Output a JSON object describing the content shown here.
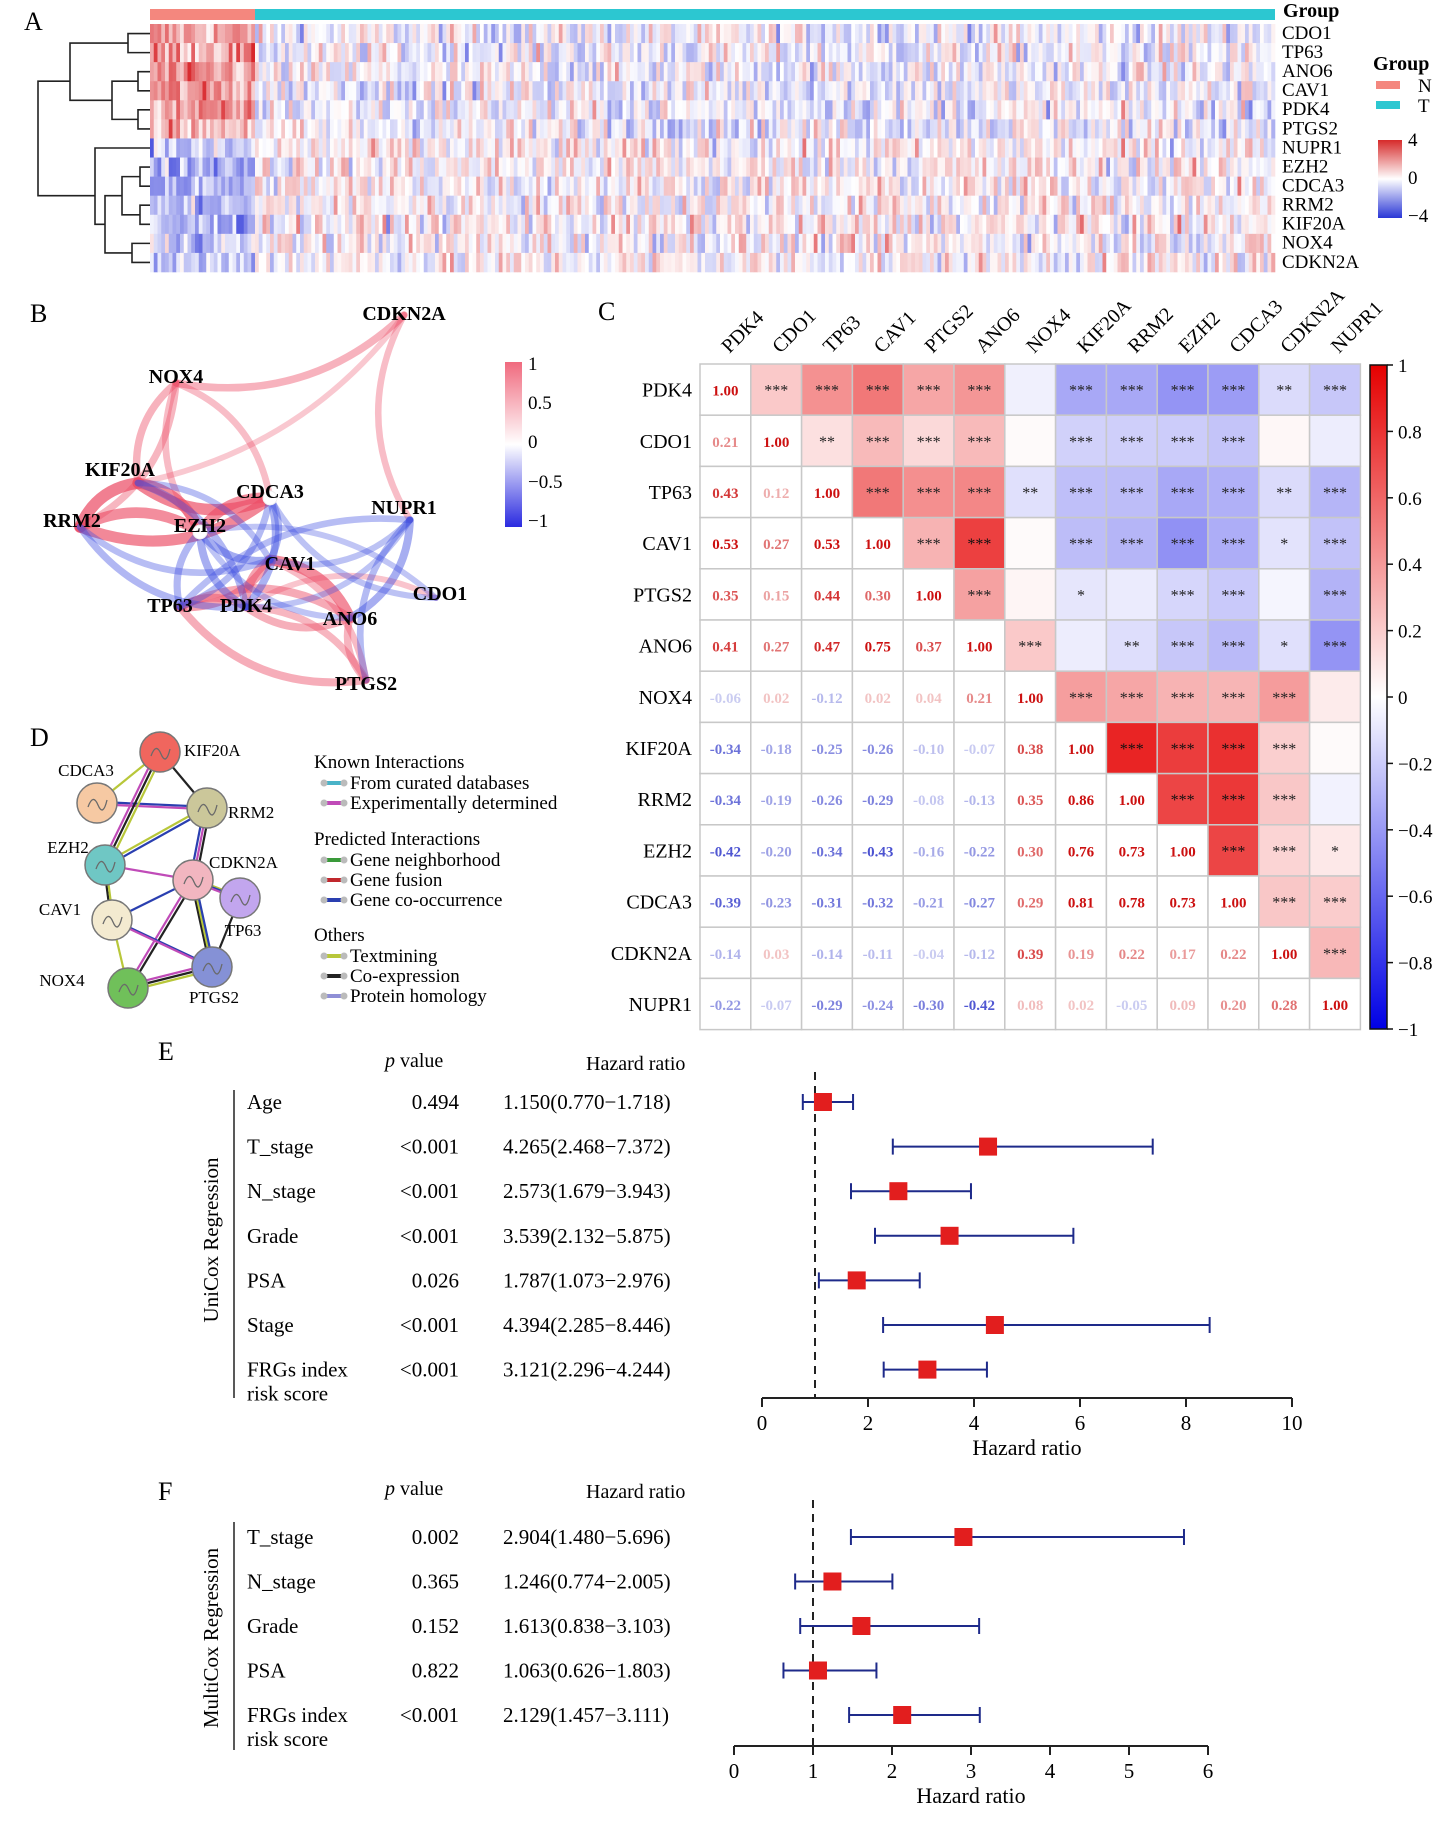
{
  "panels": {
    "A": "A",
    "B": "B",
    "C": "C",
    "D": "D",
    "E": "E",
    "F": "F"
  },
  "chart_data": [
    {
      "panel": "A",
      "type": "heatmap",
      "genes": [
        "CDO1",
        "TP63",
        "ANO6",
        "CAV1",
        "PDK4",
        "PTGS2",
        "NUPR1",
        "EZH2",
        "CDCA3",
        "RRM2",
        "KIF20A",
        "NOX4",
        "CDKN2A"
      ],
      "group_title": "Group",
      "group_bar_title": "Group",
      "groups": [
        {
          "name": "N",
          "color": "#f4877e"
        },
        {
          "name": "T",
          "color": "#2cc7d1"
        }
      ],
      "n_normal_fraction": 0.092,
      "row_bias_in_normal": [
        1.6,
        1.8,
        1.7,
        1.8,
        1.7,
        1.4,
        -1.1,
        -1.4,
        -1.5,
        -1.4,
        -1.5,
        -0.9,
        -1.0
      ],
      "scale_labels": [
        "4",
        "0",
        "−4"
      ],
      "scale_range": [
        -4,
        4
      ]
    },
    {
      "panel": "B",
      "type": "network",
      "nodes": [
        "CDKN2A",
        "NOX4",
        "KIF20A",
        "CDCA3",
        "NUPR1",
        "RRM2",
        "EZH2",
        "CAV1",
        "CDO1",
        "TP63",
        "PDK4",
        "ANO6",
        "PTGS2"
      ],
      "edges": [
        [
          "CDKN2A",
          "NOX4",
          0.39
        ],
        [
          "CDKN2A",
          "NUPR1",
          0.28
        ],
        [
          "CDKN2A",
          "KIF20A",
          0.19
        ],
        [
          "NOX4",
          "KIF20A",
          0.38
        ],
        [
          "NOX4",
          "RRM2",
          0.35
        ],
        [
          "NOX4",
          "EZH2",
          0.3
        ],
        [
          "NOX4",
          "CDCA3",
          0.29
        ],
        [
          "KIF20A",
          "RRM2",
          0.86
        ],
        [
          "KIF20A",
          "EZH2",
          0.76
        ],
        [
          "KIF20A",
          "CDCA3",
          0.81
        ],
        [
          "RRM2",
          "EZH2",
          0.73
        ],
        [
          "RRM2",
          "CDCA3",
          0.78
        ],
        [
          "EZH2",
          "CDCA3",
          0.73
        ],
        [
          "PDK4",
          "TP63",
          0.43
        ],
        [
          "PDK4",
          "CAV1",
          0.53
        ],
        [
          "PDK4",
          "ANO6",
          0.41
        ],
        [
          "PDK4",
          "PTGS2",
          0.35
        ],
        [
          "TP63",
          "CAV1",
          0.53
        ],
        [
          "TP63",
          "ANO6",
          0.47
        ],
        [
          "TP63",
          "PTGS2",
          0.44
        ],
        [
          "CAV1",
          "ANO6",
          0.75
        ],
        [
          "ANO6",
          "PTGS2",
          0.37
        ],
        [
          "CAV1",
          "PTGS2",
          0.3
        ],
        [
          "CDO1",
          "PDK4",
          0.21
        ],
        [
          "PDK4",
          "EZH2",
          -0.42
        ],
        [
          "PDK4",
          "KIF20A",
          -0.34
        ],
        [
          "PDK4",
          "RRM2",
          -0.34
        ],
        [
          "PDK4",
          "CDCA3",
          -0.39
        ],
        [
          "CAV1",
          "EZH2",
          -0.43
        ],
        [
          "CAV1",
          "CDCA3",
          -0.32
        ],
        [
          "CAV1",
          "RRM2",
          -0.29
        ],
        [
          "CAV1",
          "KIF20A",
          -0.26
        ],
        [
          "TP63",
          "EZH2",
          -0.34
        ],
        [
          "TP63",
          "CDCA3",
          -0.31
        ],
        [
          "TP63",
          "NUPR1",
          -0.29
        ],
        [
          "ANO6",
          "NUPR1",
          -0.42
        ],
        [
          "PTGS2",
          "NUPR1",
          -0.3
        ],
        [
          "CAV1",
          "NUPR1",
          -0.24
        ],
        [
          "CDO1",
          "CDCA3",
          -0.23
        ],
        [
          "CDO1",
          "EZH2",
          -0.2
        ],
        [
          "ANO6",
          "EZH2",
          -0.22
        ],
        [
          "PDK4",
          "NUPR1",
          -0.22
        ]
      ],
      "scale_labels": [
        "1",
        "0.5",
        "0",
        "−0.5",
        "−1"
      ]
    },
    {
      "panel": "C",
      "type": "heatmap",
      "genes": [
        "PDK4",
        "CDO1",
        "TP63",
        "CAV1",
        "PTGS2",
        "ANO6",
        "NOX4",
        "KIF20A",
        "RRM2",
        "EZH2",
        "CDCA3",
        "CDKN2A",
        "NUPR1"
      ],
      "matrix": [
        [
          1.0,
          0.21,
          0.43,
          0.53,
          0.35,
          0.41,
          -0.06,
          -0.34,
          -0.34,
          -0.42,
          -0.39,
          -0.14,
          -0.22
        ],
        [
          0.21,
          1.0,
          0.12,
          0.27,
          0.15,
          0.27,
          0.02,
          -0.18,
          -0.19,
          -0.2,
          -0.23,
          0.03,
          -0.07
        ],
        [
          0.43,
          0.12,
          1.0,
          0.53,
          0.44,
          0.47,
          -0.12,
          -0.25,
          -0.26,
          -0.34,
          -0.31,
          -0.14,
          -0.29
        ],
        [
          0.53,
          0.27,
          0.53,
          1.0,
          0.3,
          0.75,
          0.02,
          -0.26,
          -0.29,
          -0.43,
          -0.32,
          -0.11,
          -0.24
        ],
        [
          0.35,
          0.15,
          0.44,
          0.3,
          1.0,
          0.37,
          0.04,
          -0.1,
          -0.08,
          -0.16,
          -0.21,
          -0.04,
          -0.3
        ],
        [
          0.41,
          0.27,
          0.47,
          0.75,
          0.37,
          1.0,
          0.21,
          -0.07,
          -0.13,
          -0.22,
          -0.27,
          -0.12,
          -0.42
        ],
        [
          -0.06,
          0.02,
          -0.12,
          0.02,
          0.04,
          0.21,
          1.0,
          0.38,
          0.35,
          0.3,
          0.29,
          0.39,
          0.08
        ],
        [
          -0.34,
          -0.18,
          -0.25,
          -0.26,
          -0.1,
          -0.07,
          0.38,
          1.0,
          0.86,
          0.76,
          0.81,
          0.19,
          0.02
        ],
        [
          -0.34,
          -0.19,
          -0.26,
          -0.29,
          -0.08,
          -0.13,
          0.35,
          0.86,
          1.0,
          0.73,
          0.78,
          0.22,
          -0.05
        ],
        [
          -0.42,
          -0.2,
          -0.34,
          -0.43,
          -0.16,
          -0.22,
          0.3,
          0.76,
          0.73,
          1.0,
          0.73,
          0.17,
          0.09
        ],
        [
          -0.39,
          -0.23,
          -0.31,
          -0.32,
          -0.21,
          -0.27,
          0.29,
          0.81,
          0.78,
          0.73,
          1.0,
          0.22,
          0.2
        ],
        [
          -0.14,
          0.03,
          -0.14,
          -0.11,
          -0.04,
          -0.12,
          0.39,
          0.19,
          0.22,
          0.17,
          0.22,
          1.0,
          0.28
        ],
        [
          -0.22,
          -0.07,
          -0.29,
          -0.24,
          -0.3,
          -0.42,
          0.08,
          0.02,
          -0.05,
          0.09,
          0.2,
          0.28,
          1.0
        ]
      ],
      "significance": [
        [
          "",
          "***",
          "***",
          "***",
          "***",
          "***",
          "",
          "***",
          "***",
          "***",
          "***",
          "**",
          "***"
        ],
        [
          "",
          "",
          "**",
          "***",
          "***",
          "***",
          "",
          "***",
          "***",
          "***",
          "***",
          "",
          ""
        ],
        [
          "",
          "",
          "",
          "***",
          "***",
          "***",
          "**",
          "***",
          "***",
          "***",
          "***",
          "**",
          "***"
        ],
        [
          "",
          "",
          "",
          "",
          "***",
          "***",
          "",
          "***",
          "***",
          "***",
          "***",
          "*",
          "***"
        ],
        [
          "",
          "",
          "",
          "",
          "",
          "***",
          "",
          "*",
          "",
          "***",
          "***",
          "",
          "***"
        ],
        [
          "",
          "",
          "",
          "",
          "",
          "",
          "***",
          "",
          "**",
          "***",
          "***",
          "*",
          "***"
        ],
        [
          "",
          "",
          "",
          "",
          "",
          "",
          "",
          "***",
          "***",
          "***",
          "***",
          "***",
          ""
        ],
        [
          "",
          "",
          "",
          "",
          "",
          "",
          "",
          "",
          "***",
          "***",
          "***",
          "***",
          ""
        ],
        [
          "",
          "",
          "",
          "",
          "",
          "",
          "",
          "",
          "",
          "***",
          "***",
          "***",
          ""
        ],
        [
          "",
          "",
          "",
          "",
          "",
          "",
          "",
          "",
          "",
          "",
          "***",
          "***",
          "*"
        ],
        [
          "",
          "",
          "",
          "",
          "",
          "",
          "",
          "",
          "",
          "",
          "",
          "***",
          "***"
        ],
        [
          "",
          "",
          "",
          "",
          "",
          "",
          "",
          "",
          "",
          "",
          "",
          "",
          "***"
        ],
        [
          "",
          "",
          "",
          "",
          "",
          "",
          "",
          "",
          "",
          "",
          "",
          "",
          ""
        ]
      ],
      "scale_labels": [
        "1",
        "0.8",
        "0.6",
        "0.4",
        "0.2",
        "0",
        "−0.2",
        "−0.4",
        "−0.6",
        "−0.8",
        "−1"
      ],
      "scale_range": [
        -1,
        1
      ]
    },
    {
      "panel": "D",
      "type": "network",
      "nodes": [
        {
          "name": "KIF20A",
          "color": "#f0665e"
        },
        {
          "name": "CDCA3",
          "color": "#f6c9a3"
        },
        {
          "name": "RRM2",
          "color": "#cbc79a"
        },
        {
          "name": "EZH2",
          "color": "#6fc7c4"
        },
        {
          "name": "CDKN2A",
          "color": "#f2b6c0"
        },
        {
          "name": "TP63",
          "color": "#c2a6ee"
        },
        {
          "name": "CAV1",
          "color": "#f3ead0"
        },
        {
          "name": "NOX4",
          "color": "#70c05a"
        },
        {
          "name": "PTGS2",
          "color": "#8591d6"
        }
      ],
      "edges": [
        [
          "CDCA3",
          "KIF20A"
        ],
        [
          "CDCA3",
          "RRM2"
        ],
        [
          "KIF20A",
          "EZH2"
        ],
        [
          "KIF20A",
          "RRM2"
        ],
        [
          "RRM2",
          "EZH2"
        ],
        [
          "RRM2",
          "CDKN2A"
        ],
        [
          "EZH2",
          "CDKN2A"
        ],
        [
          "EZH2",
          "CAV1"
        ],
        [
          "CDKN2A",
          "TP63"
        ],
        [
          "CDKN2A",
          "CAV1"
        ],
        [
          "CDKN2A",
          "NOX4"
        ],
        [
          "CDKN2A",
          "PTGS2"
        ],
        [
          "CAV1",
          "NOX4"
        ],
        [
          "CAV1",
          "PTGS2"
        ],
        [
          "NOX4",
          "PTGS2"
        ],
        [
          "TP63",
          "PTGS2"
        ]
      ],
      "legend": {
        "known_title": "Known Interactions",
        "known": [
          {
            "label": "From curated databases",
            "color": "#49b3c8"
          },
          {
            "label": "Experimentally determined",
            "color": "#c04bb8"
          }
        ],
        "predicted_title": "Predicted Interactions",
        "predicted": [
          {
            "label": "Gene neighborhood",
            "color": "#3a9a3a"
          },
          {
            "label": "Gene fusion",
            "color": "#c0282d"
          },
          {
            "label": "Gene co-occurrence",
            "color": "#2a3fb0"
          }
        ],
        "others_title": "Others",
        "others": [
          {
            "label": "Textmining",
            "color": "#b8c73a"
          },
          {
            "label": "Co-expression",
            "color": "#222222"
          },
          {
            "label": "Protein homology",
            "color": "#8f8fd6"
          }
        ]
      }
    },
    {
      "panel": "E",
      "type": "forest",
      "group_label": "UniCox Regression",
      "col_p": "p value",
      "col_hr": "Hazard ratio",
      "rows": [
        {
          "label": "Age",
          "p": "0.494",
          "hr_text": "1.150(0.770−1.718)",
          "hr": 1.15,
          "lo": 0.77,
          "hi": 1.718
        },
        {
          "label": "T_stage",
          "p": "<0.001",
          "hr_text": "4.265(2.468−7.372)",
          "hr": 4.265,
          "lo": 2.468,
          "hi": 7.372
        },
        {
          "label": "N_stage",
          "p": "<0.001",
          "hr_text": "2.573(1.679−3.943)",
          "hr": 2.573,
          "lo": 1.679,
          "hi": 3.943
        },
        {
          "label": "Grade",
          "p": "<0.001",
          "hr_text": "3.539(2.132−5.875)",
          "hr": 3.539,
          "lo": 2.132,
          "hi": 5.875
        },
        {
          "label": "PSA",
          "p": "0.026",
          "hr_text": "1.787(1.073−2.976)",
          "hr": 1.787,
          "lo": 1.073,
          "hi": 2.976
        },
        {
          "label": "Stage",
          "p": "<0.001",
          "hr_text": "4.394(2.285−8.446)",
          "hr": 4.394,
          "lo": 2.285,
          "hi": 8.446
        },
        {
          "label": "FRGs index",
          "label2": "risk score",
          "p": "<0.001",
          "hr_text": "3.121(2.296−4.244)",
          "hr": 3.121,
          "lo": 2.296,
          "hi": 4.244
        }
      ],
      "xlim": [
        0,
        10
      ],
      "ticks": [
        0,
        2,
        4,
        6,
        8,
        10
      ],
      "ref_line": 1,
      "xlabel": "Hazard ratio"
    },
    {
      "panel": "F",
      "type": "forest",
      "group_label": "MultiCox Regression",
      "col_p": "p value",
      "col_hr": "Hazard ratio",
      "rows": [
        {
          "label": "T_stage",
          "p": "0.002",
          "hr_text": "2.904(1.480−5.696)",
          "hr": 2.904,
          "lo": 1.48,
          "hi": 5.696
        },
        {
          "label": "N_stage",
          "p": "0.365",
          "hr_text": "1.246(0.774−2.005)",
          "hr": 1.246,
          "lo": 0.774,
          "hi": 2.005
        },
        {
          "label": "Grade",
          "p": "0.152",
          "hr_text": "1.613(0.838−3.103)",
          "hr": 1.613,
          "lo": 0.838,
          "hi": 3.103
        },
        {
          "label": "PSA",
          "p": "0.822",
          "hr_text": "1.063(0.626−1.803)",
          "hr": 1.063,
          "lo": 0.626,
          "hi": 1.803
        },
        {
          "label": "FRGs index",
          "label2": "risk score",
          "p": "<0.001",
          "hr_text": "2.129(1.457−3.111)",
          "hr": 2.129,
          "lo": 1.457,
          "hi": 3.111
        }
      ],
      "xlim": [
        0,
        6
      ],
      "ticks": [
        0,
        1,
        2,
        3,
        4,
        5,
        6
      ],
      "ref_line": 1,
      "xlabel": "Hazard ratio"
    }
  ]
}
